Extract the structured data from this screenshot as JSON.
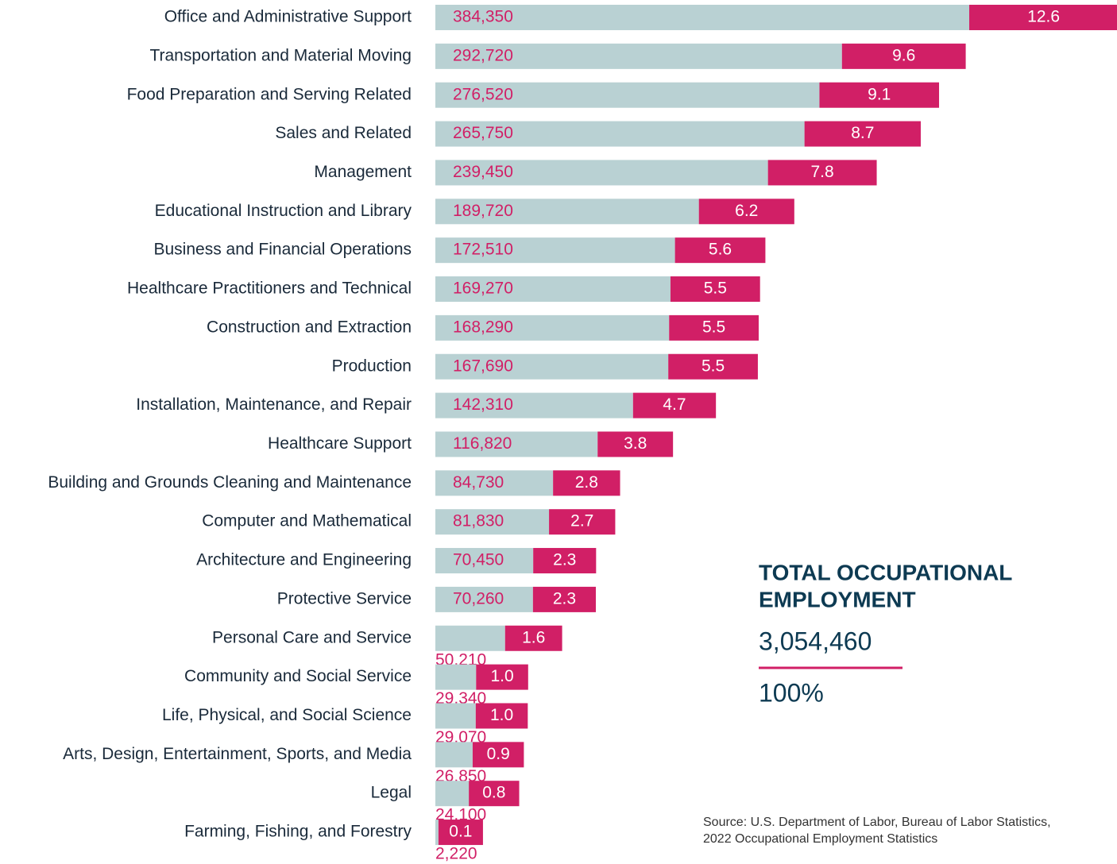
{
  "chart_data": {
    "type": "bar",
    "categories": [
      "Office and Administrative Support",
      "Transportation and Material Moving",
      "Food Preparation and Serving Related",
      "Sales and Related",
      "Management",
      "Educational Instruction and Library",
      "Business and Financial Operations",
      "Healthcare Practitioners and Technical",
      "Construction and Extraction",
      "Production",
      "Installation, Maintenance, and Repair",
      "Healthcare Support",
      "Building and Grounds Cleaning and Maintenance",
      "Computer and Mathematical",
      "Architecture and Engineering",
      "Protective Service",
      "Personal Care and Service",
      "Community and Social Service",
      "Life, Physical, and Social Science",
      "Arts, Design, Entertainment, Sports, and Media",
      "Legal",
      "Farming, Fishing, and Forestry"
    ],
    "employment": {
      "color": "#b9d1d3",
      "values": [
        384350,
        292720,
        276520,
        265750,
        239450,
        189720,
        172510,
        169270,
        168290,
        167690,
        142310,
        116820,
        84730,
        81830,
        70450,
        70260,
        50210,
        29340,
        29070,
        26850,
        24100,
        2220
      ],
      "value_labels": [
        "384,350",
        "292,720",
        "276,520",
        "265,750",
        "239,450",
        "189,720",
        "172,510",
        "169,270",
        "168,290",
        "167,690",
        "142,310",
        "116,820",
        "84,730",
        "81,830",
        "70,450",
        "70,260",
        "50,210",
        "29,340",
        "29,070",
        "26,850",
        "24,100",
        "2,220"
      ]
    },
    "share": {
      "color": "#d11f66",
      "values": [
        12.6,
        9.6,
        9.1,
        8.7,
        7.8,
        6.2,
        5.6,
        5.5,
        5.5,
        5.5,
        4.7,
        3.8,
        2.8,
        2.7,
        2.3,
        2.3,
        1.6,
        1.0,
        1.0,
        0.9,
        0.8,
        0.1
      ],
      "value_labels": [
        "12.6",
        "9.6",
        "9.1",
        "8.7",
        "7.8",
        "6.2",
        "5.6",
        "5.5",
        "5.5",
        "5.5",
        "4.7",
        "3.8",
        "2.8",
        "2.7",
        "2.3",
        "2.3",
        "1.6",
        "1.0",
        "1.0",
        "0.9",
        "0.8",
        "0.1"
      ]
    },
    "total": {
      "title_lines": [
        "TOTAL OCCUPATIONAL",
        "EMPLOYMENT"
      ],
      "value": "3,054,460",
      "share": "100%"
    },
    "source_lines": [
      "Source: U.S. Department of Labor, Bureau of Labor Statistics,",
      "2022 Occupational Employment Statistics"
    ]
  }
}
